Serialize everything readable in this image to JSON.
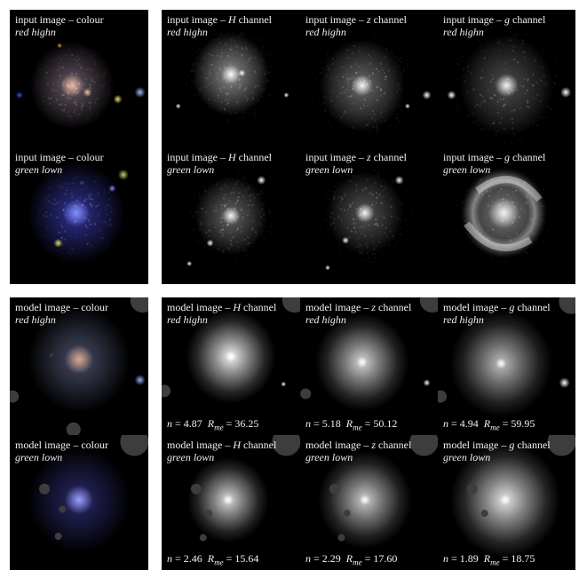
{
  "panels": [
    {
      "id": "in-colour-red",
      "title_pre": "input image – colour",
      "title_italic": "",
      "title_post": "",
      "subtitle": "red highn"
    },
    {
      "id": "in-H-red",
      "title_pre": "input image – ",
      "title_italic": "H",
      "title_post": " channel",
      "subtitle": "red highn"
    },
    {
      "id": "in-z-red",
      "title_pre": "input image – ",
      "title_italic": "z",
      "title_post": " channel",
      "subtitle": "red highn"
    },
    {
      "id": "in-g-red",
      "title_pre": "input image – ",
      "title_italic": "g",
      "title_post": " channel",
      "subtitle": "red highn"
    },
    {
      "id": "in-colour-green",
      "title_pre": "input image – colour",
      "title_italic": "",
      "title_post": "",
      "subtitle": "green lown"
    },
    {
      "id": "in-H-green",
      "title_pre": "input image – ",
      "title_italic": "H",
      "title_post": " channel",
      "subtitle": "green lown"
    },
    {
      "id": "in-z-green",
      "title_pre": "input image – ",
      "title_italic": "z",
      "title_post": " channel",
      "subtitle": "green lown"
    },
    {
      "id": "in-g-green",
      "title_pre": "input image – ",
      "title_italic": "g",
      "title_post": " channel",
      "subtitle": "green lown"
    },
    {
      "id": "mo-colour-red",
      "title_pre": "model image – colour",
      "title_italic": "",
      "title_post": "",
      "subtitle": "red highn"
    },
    {
      "id": "mo-H-red",
      "title_pre": "model image – ",
      "title_italic": "H",
      "title_post": " channel",
      "subtitle": "red highn",
      "n": "4.87",
      "rme": "36.25"
    },
    {
      "id": "mo-z-red",
      "title_pre": "model image – ",
      "title_italic": "z",
      "title_post": " channel",
      "subtitle": "red highn",
      "n": "5.18",
      "rme": "50.12"
    },
    {
      "id": "mo-g-red",
      "title_pre": "model image – ",
      "title_italic": "g",
      "title_post": " channel",
      "subtitle": "red highn",
      "n": "4.94",
      "rme": "59.95"
    },
    {
      "id": "mo-colour-green",
      "title_pre": "model image – colour",
      "title_italic": "",
      "title_post": "",
      "subtitle": "green lown"
    },
    {
      "id": "mo-H-green",
      "title_pre": "model image – ",
      "title_italic": "H",
      "title_post": " channel",
      "subtitle": "green lown",
      "n": "2.46",
      "rme": "15.64"
    },
    {
      "id": "mo-z-green",
      "title_pre": "model image – ",
      "title_italic": "z",
      "title_post": " channel",
      "subtitle": "green lown",
      "n": "2.29",
      "rme": "17.60"
    },
    {
      "id": "mo-g-green",
      "title_pre": "model image – ",
      "title_italic": "g",
      "title_post": " channel",
      "subtitle": "green lown",
      "n": "1.89",
      "rme": "18.75"
    }
  ],
  "param_symbols": {
    "n": "n",
    "equals": " = ",
    "R": "R",
    "sub": "me"
  }
}
